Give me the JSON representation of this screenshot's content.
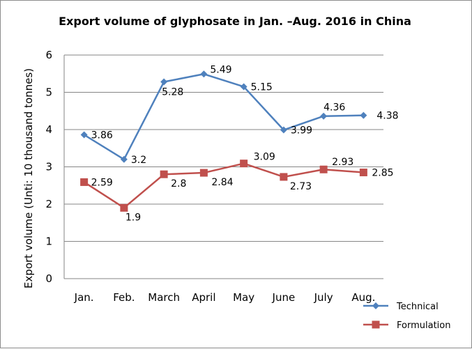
{
  "chart_data": {
    "type": "line",
    "title": "Export volume of glyphosate in Jan. –Aug. 2016 in China",
    "xlabel": "",
    "ylabel": "Export volume (Unti: 10 thousand tonnes)",
    "categories": [
      "Jan.",
      "Feb.",
      "March",
      "April",
      "May",
      "June",
      "July",
      "Aug."
    ],
    "ylim": [
      0,
      6
    ],
    "yticks": [
      "0",
      "1",
      "2",
      "3",
      "4",
      "5",
      "6"
    ],
    "grid": true,
    "legend": "bottom-right",
    "series": [
      {
        "name": "Technical",
        "color": "#4f81bd",
        "marker": "diamond",
        "values": [
          3.86,
          3.2,
          5.28,
          5.49,
          5.15,
          3.99,
          4.36,
          4.38
        ],
        "labels": [
          "3.86",
          "3.2",
          "5.28",
          "5.49",
          "5.15",
          "3.99",
          "4.36",
          "4.38"
        ]
      },
      {
        "name": "Formulation",
        "color": "#c0504d",
        "marker": "square",
        "values": [
          2.59,
          1.9,
          2.8,
          2.84,
          3.09,
          2.73,
          2.93,
          2.85
        ],
        "labels": [
          "2.59",
          "1.9",
          "2.8",
          "2.84",
          "3.09",
          "2.73",
          "2.93",
          "2.85"
        ]
      }
    ]
  }
}
